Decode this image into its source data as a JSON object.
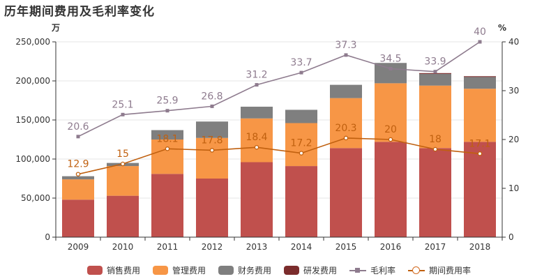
{
  "title": "历年期间费用及毛利率变化",
  "colors": {
    "sales": "#c0504d",
    "admin": "#f79646",
    "finance": "#7f7f7f",
    "rnd": "#7b2c2c",
    "gross": "#8e7b8e",
    "period": "#c0600f",
    "axis": "#333333",
    "grid": "#e6e6e6"
  },
  "chart_data": {
    "type": "bar",
    "stacked": true,
    "categories": [
      "2009",
      "2010",
      "2011",
      "2012",
      "2013",
      "2014",
      "2015",
      "2016",
      "2017",
      "2018"
    ],
    "y_left_unit": "万",
    "y_right_unit": "%",
    "ylim_left": [
      0,
      250000
    ],
    "ylim_right": [
      0,
      40
    ],
    "yticks_left": [
      "0",
      "50,000",
      "100,000",
      "150,000",
      "200,000",
      "250,000"
    ],
    "yticks_right": [
      "0",
      "10",
      "20",
      "30",
      "40"
    ],
    "grid": true,
    "legend_position": "bottom",
    "series": [
      {
        "name": "销售费用",
        "key": "sales",
        "kind": "bar",
        "values": [
          48000,
          53000,
          81000,
          75000,
          96000,
          91000,
          114000,
          122000,
          114000,
          122000
        ]
      },
      {
        "name": "管理费用",
        "key": "admin",
        "kind": "bar",
        "values": [
          26000,
          38000,
          44000,
          52000,
          56000,
          55000,
          64000,
          75000,
          80000,
          68000
        ]
      },
      {
        "name": "财务费用",
        "key": "finance",
        "kind": "bar",
        "values": [
          4000,
          4000,
          12000,
          21000,
          15000,
          17000,
          17000,
          26000,
          15000,
          15000
        ]
      },
      {
        "name": "研发费用",
        "key": "rnd",
        "kind": "bar",
        "values": [
          0,
          0,
          0,
          0,
          0,
          0,
          0,
          0,
          1000,
          1000
        ]
      },
      {
        "name": "毛利率",
        "key": "gross",
        "kind": "line",
        "axis": "right",
        "marker": "square",
        "values": [
          20.6,
          25.1,
          25.9,
          26.8,
          31.2,
          33.7,
          37.3,
          34.5,
          33.9,
          40
        ],
        "labels": [
          "20.6",
          "25.1",
          "25.9",
          "26.8",
          "31.2",
          "33.7",
          "37.3",
          "34.5",
          "33.9",
          "40"
        ]
      },
      {
        "name": "期间费用率",
        "key": "period",
        "kind": "line",
        "axis": "right",
        "marker": "circle",
        "values": [
          12.9,
          15,
          18.1,
          17.8,
          18.4,
          17.2,
          20.3,
          20,
          18,
          17.1
        ],
        "labels": [
          "12.9",
          "15",
          "18.1",
          "17.8",
          "18.4",
          "17.2",
          "20.3",
          "20",
          "18",
          "17.1"
        ]
      }
    ]
  }
}
